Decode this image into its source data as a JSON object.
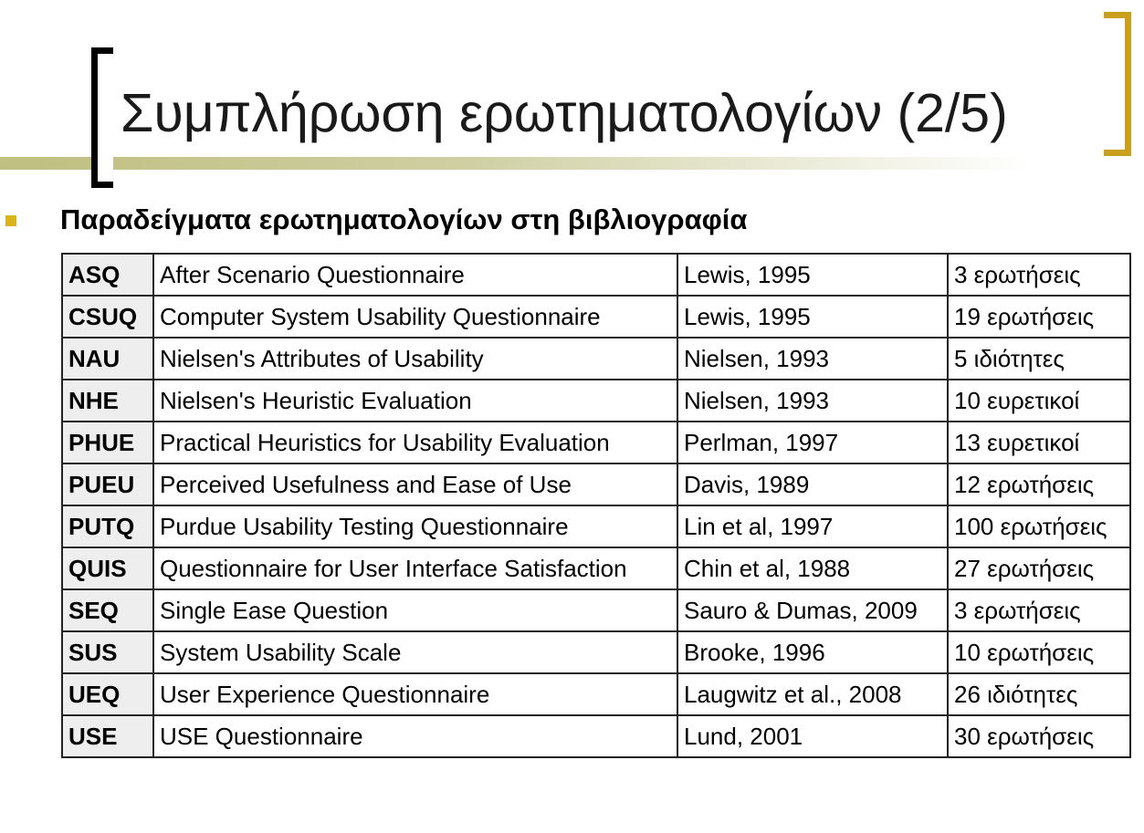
{
  "slide": {
    "title": "Συμπλήρωση ερωτηματολογίων (2/5)",
    "subtitle": "Παραδείγματα ερωτηματολογίων στη βιβλιογραφία"
  },
  "colors": {
    "bracket_left": "#000000",
    "bracket_right": "#c8a01c",
    "bullet": "#d9b51b",
    "accent_bar": "#bfbf80",
    "acronym_cell_bg": "#eeeeee"
  },
  "table": {
    "rows": [
      [
        "ASQ",
        "After Scenario Questionnaire",
        "Lewis, 1995",
        "3 ερωτήσεις"
      ],
      [
        "CSUQ",
        "Computer System Usability Questionnaire",
        "Lewis, 1995",
        "19 ερωτήσεις"
      ],
      [
        "NAU",
        "Nielsen's Attributes of Usability",
        "Nielsen, 1993",
        "5 ιδιότητες"
      ],
      [
        "NHE",
        "Nielsen's Heuristic Evaluation",
        "Nielsen, 1993",
        "10 ευρετικοί"
      ],
      [
        "PHUE",
        "Practical Heuristics for Usability Evaluation",
        "Perlman, 1997",
        "13 ευρετικοί"
      ],
      [
        "PUEU",
        "Perceived Usefulness and Ease of Use",
        "Davis, 1989",
        "12 ερωτήσεις"
      ],
      [
        "PUTQ",
        "Purdue Usability Testing Questionnaire",
        "Lin et al, 1997",
        "100 ερωτήσεις"
      ],
      [
        "QUIS",
        "Questionnaire for User Interface Satisfaction",
        "Chin et al, 1988",
        "27 ερωτήσεις"
      ],
      [
        "SEQ",
        "Single Ease Question",
        "Sauro & Dumas, 2009",
        "3 ερωτήσεις"
      ],
      [
        "SUS",
        "System Usability Scale",
        "Brooke, 1996",
        "10 ερωτήσεις"
      ],
      [
        "UEQ",
        "User Experience Questionnaire",
        "Laugwitz et al., 2008",
        "26  ιδιότητες"
      ],
      [
        "USE",
        "USE Questionnaire",
        "Lund, 2001",
        "30 ερωτήσεις"
      ]
    ]
  }
}
